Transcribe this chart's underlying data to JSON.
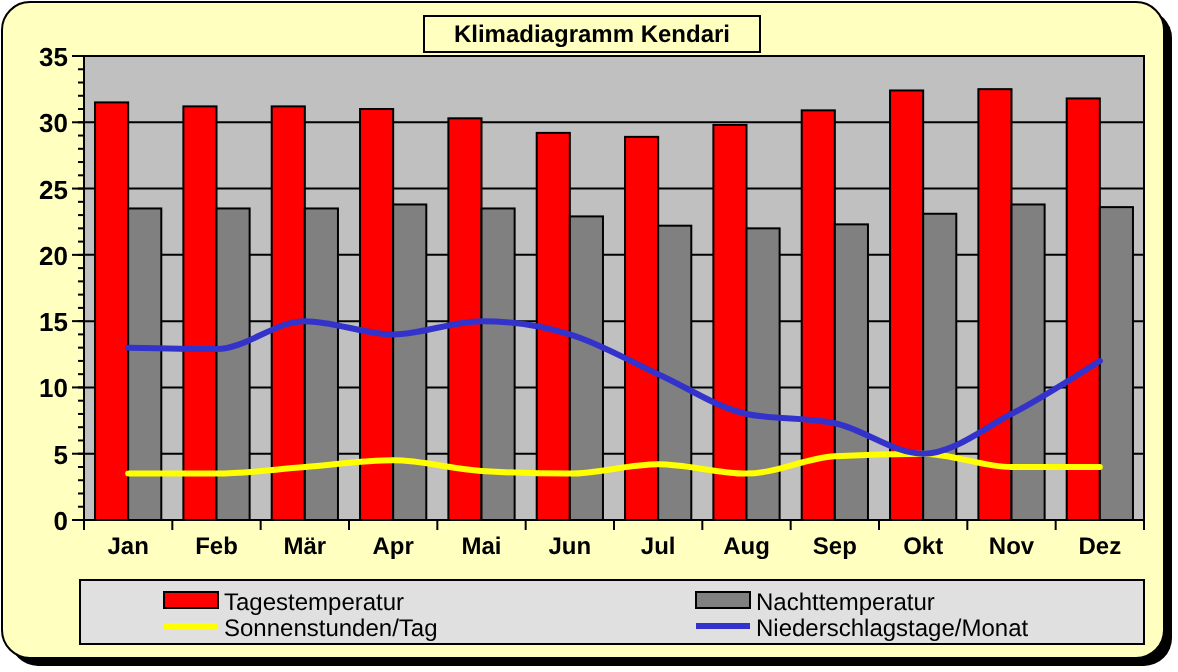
{
  "chart_data": {
    "type": "bar",
    "title": "Klimadiagramm Kendari",
    "categories": [
      "Jan",
      "Feb",
      "Mär",
      "Apr",
      "Mai",
      "Jun",
      "Jul",
      "Aug",
      "Sep",
      "Okt",
      "Nov",
      "Dez"
    ],
    "series": [
      {
        "name": "Tagestemperatur",
        "color": "#ff0000",
        "values": [
          31.5,
          31.2,
          31.2,
          31.0,
          30.3,
          29.2,
          28.9,
          29.8,
          30.9,
          32.4,
          32.5,
          31.8
        ]
      },
      {
        "name": "Nachttemperatur",
        "color": "#808080",
        "values": [
          23.5,
          23.5,
          23.5,
          23.8,
          23.5,
          22.9,
          22.2,
          22.0,
          22.3,
          23.1,
          23.8,
          23.6
        ]
      },
      {
        "name": "Sonnenstunden/Tag",
        "type": "line",
        "color": "#ffff00",
        "values": [
          3.5,
          3.5,
          4.0,
          4.5,
          3.7,
          3.5,
          4.2,
          3.5,
          4.8,
          5.0,
          4.0,
          4.0
        ]
      },
      {
        "name": "Niederschlagstage/Monat",
        "type": "line",
        "color": "#3333cc",
        "values": [
          13,
          12.9,
          15,
          14,
          15,
          14,
          11,
          8,
          7.3,
          5,
          8,
          12
        ]
      }
    ],
    "ylim": [
      0,
      35
    ],
    "yticks": [
      0,
      5,
      10,
      15,
      20,
      25,
      30,
      35
    ],
    "grid": "y",
    "legend": "bottom"
  }
}
